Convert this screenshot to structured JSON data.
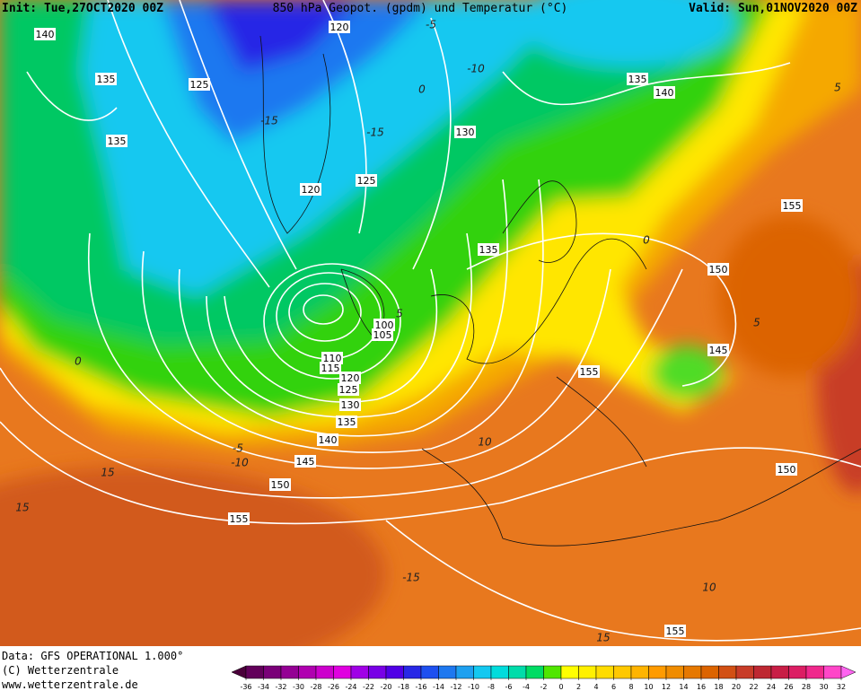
{
  "header": {
    "init": "Init: Tue,27OCT2020 00Z",
    "title": "850 hPa Geopot. (gpdm) und Temperatur (°C)",
    "valid": "Valid: Sun,01NOV2020 00Z"
  },
  "map": {
    "geopotential_labels": [
      140,
      120,
      135,
      125,
      135,
      130,
      135,
      140,
      125,
      120,
      135,
      155,
      150,
      100,
      105,
      145,
      110,
      115,
      155,
      120,
      125,
      130,
      135,
      140,
      145,
      150,
      155,
      150,
      155
    ],
    "temperature_labels": [
      -15,
      -15,
      -10,
      -5,
      0,
      0,
      5,
      5,
      0,
      -5,
      -10,
      15,
      15,
      10,
      -15,
      10,
      15,
      5
    ]
  },
  "footer": {
    "data": "Data: GFS OPERATIONAL 1.000°",
    "copyright": "(C) Wetterzentrale",
    "url": "www.wetterzentrale.de"
  },
  "colorbar": {
    "ticks": [
      -36,
      -34,
      -32,
      -30,
      -28,
      -26,
      -24,
      -22,
      -20,
      -18,
      -16,
      -14,
      -12,
      -10,
      -8,
      -6,
      -4,
      -2,
      0,
      2,
      4,
      6,
      8,
      10,
      12,
      14,
      16,
      18,
      20,
      22,
      24,
      26,
      28,
      30,
      32
    ],
    "colors": [
      "#4a003a",
      "#62005a",
      "#7a0078",
      "#940094",
      "#b000b0",
      "#cc00cc",
      "#e000e0",
      "#a000e6",
      "#7800e6",
      "#5000e6",
      "#2828e6",
      "#1e50f0",
      "#1e78f0",
      "#1ea0f0",
      "#14c8f0",
      "#00dcdc",
      "#00dcaa",
      "#00dc64",
      "#50e600",
      "#ffff00",
      "#fff000",
      "#ffdc00",
      "#ffc800",
      "#ffb400",
      "#ff9b00",
      "#f08c00",
      "#e67800",
      "#dc6400",
      "#d25014",
      "#c83c28",
      "#be2832",
      "#c81e46",
      "#dc1e64",
      "#f0288c",
      "#ff46c8",
      "#ff64f0"
    ]
  }
}
